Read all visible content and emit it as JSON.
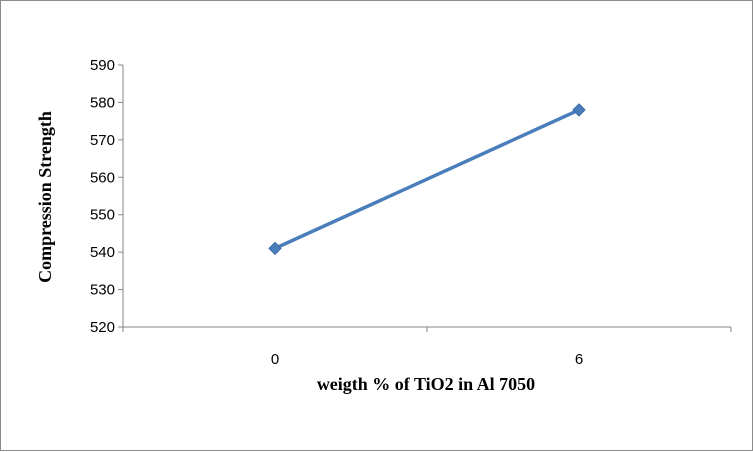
{
  "chart_data": {
    "type": "line",
    "title": "",
    "xlabel": "weigth % of TiO2 in Al 7050",
    "ylabel": "Compression Strength",
    "categories": [
      "0",
      "6"
    ],
    "series": [
      {
        "values": [
          541,
          578
        ],
        "color": "#4a7ebb",
        "marker": "diamond"
      }
    ],
    "ylim": [
      520,
      590
    ],
    "yticks": [
      520,
      530,
      540,
      550,
      560,
      570,
      580,
      590
    ],
    "grid": false,
    "legend": "none"
  }
}
